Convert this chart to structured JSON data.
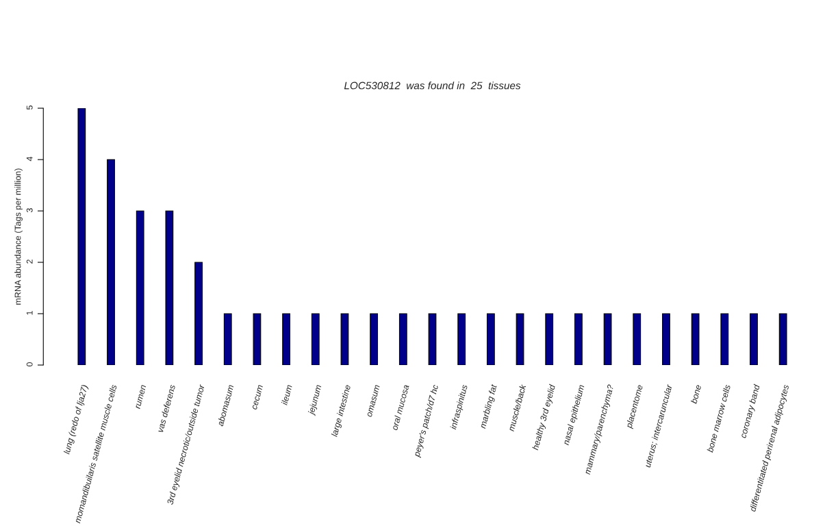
{
  "chart_data": {
    "type": "bar",
    "title": "LOC530812  was found in  25  tissues",
    "ylabel": "mRNA abundance (Tags per million)",
    "categories": [
      "lung (redo of lja27)",
      "momandibuilaris satellite muscle cells",
      "rumen",
      "vas deferens",
      "3rd eyelid necrotic/outside tumor",
      "abomasum",
      "cecum",
      "ileum",
      "jejunum",
      "large intestine",
      "omasum",
      "oral mucosa",
      "peyer's patch/d7 hc",
      "infraspinitus",
      "marbling fat",
      "muscle/back",
      "healthy 3rd eyelid",
      "nasal epithelium",
      "mammary/parenchyma?",
      "placentome",
      "uterus; intercaruncular",
      "bone",
      "bone marrow cells",
      "coronary band",
      "differentitated perirenal adipocytes"
    ],
    "values": [
      5,
      4,
      3,
      3,
      2,
      1,
      1,
      1,
      1,
      1,
      1,
      1,
      1,
      1,
      1,
      1,
      1,
      1,
      1,
      1,
      1,
      1,
      1,
      1,
      1
    ],
    "color": "#00008b",
    "ylim": [
      0,
      5
    ],
    "yticks": [
      0,
      1,
      2,
      3,
      4,
      5
    ],
    "grid": false
  }
}
